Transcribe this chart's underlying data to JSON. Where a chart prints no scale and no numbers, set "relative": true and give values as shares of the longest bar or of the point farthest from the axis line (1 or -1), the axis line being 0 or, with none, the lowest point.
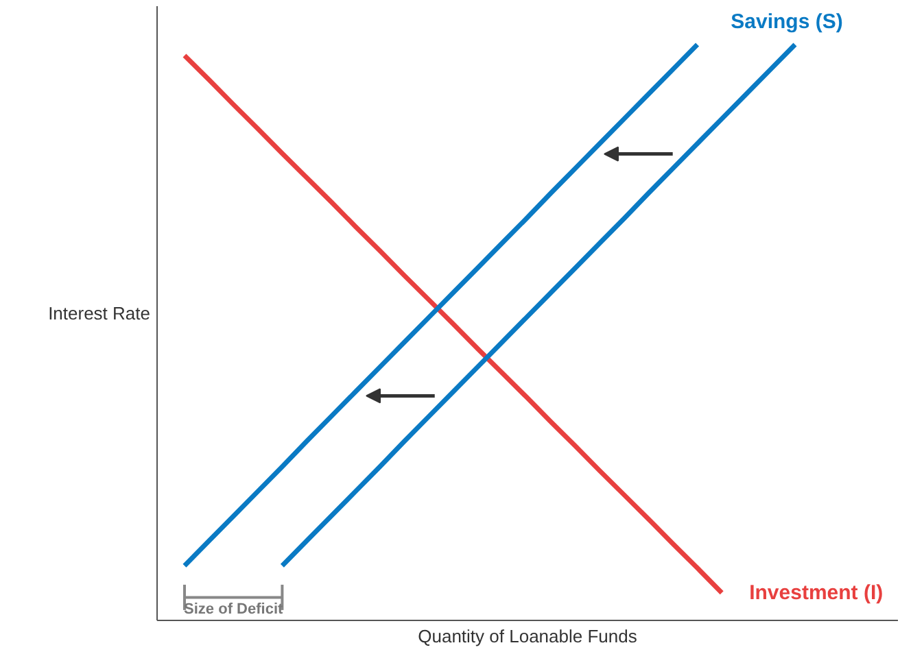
{
  "chart_data": {
    "type": "line",
    "relative": true,
    "xlabel": "Quantity of Loanable Funds",
    "ylabel": "Interest Rate",
    "marker": "none",
    "line_style": "solid",
    "categories": [
      null,
      null,
      null,
      null,
      null,
      null,
      null,
      null,
      null,
      null,
      null,
      null,
      null,
      null,
      null,
      null,
      null,
      null,
      null,
      null,
      null,
      null,
      null,
      null,
      null,
      null
    ],
    "series": [
      {
        "color": "#e8403f",
        "name": "Investment (I)",
        "values": [
          0.981,
          0.939,
          0.896,
          0.854,
          0.811,
          0.769,
          0.727,
          0.684,
          0.642,
          0.599,
          0.557,
          0.515,
          0.472,
          0.43,
          0.388,
          0.345,
          0.303,
          0.26,
          0.218,
          0.176,
          0.133,
          0.091,
          0.048,
          null,
          null,
          null
        ]
      },
      {
        "color": "#0a7ac4",
        "values": [
          0.095,
          0.138,
          0.181,
          0.224,
          0.267,
          0.311,
          0.354,
          0.397,
          0.44,
          0.483,
          0.526,
          0.569,
          0.612,
          0.655,
          0.698,
          0.742,
          0.785,
          0.828,
          0.871,
          0.914,
          0.957,
          1.0,
          null,
          null,
          null,
          null
        ]
      },
      {
        "color": "#0a7ac4",
        "name": "Savings (S)",
        "values": [
          null,
          null,
          null,
          null,
          0.095,
          0.138,
          0.181,
          0.224,
          0.267,
          0.311,
          0.354,
          0.397,
          0.44,
          0.483,
          0.526,
          0.569,
          0.612,
          0.655,
          0.698,
          0.742,
          0.785,
          0.828,
          0.871,
          0.914,
          0.957,
          1.0
        ]
      }
    ],
    "annotations": [
      "Size of Deficit"
    ]
  }
}
